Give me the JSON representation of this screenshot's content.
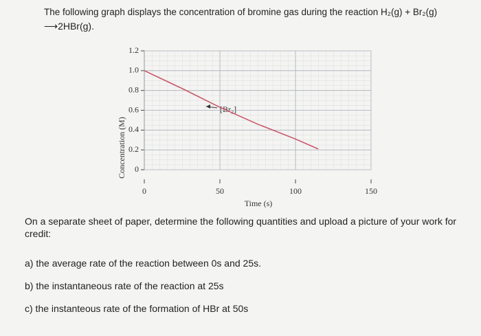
{
  "document": {
    "title_line1": "The following graph displays the concentration of bromine gas during the reaction H₂(g) + Br₂(g)",
    "title_line2": "⟶2HBr(g).",
    "instruction": "On a separate sheet of paper, determine the following quantities and upload a picture of your work for credit:",
    "questions": [
      "a) the average rate of the reaction between 0s and 25s.",
      "b) the instantaneous rate of the reaction at 25s",
      "c) the instanteous rate of the formation of HBr at 50s"
    ]
  },
  "chart_data": {
    "type": "line",
    "x_label": "Time (s)",
    "y_label": "Concentration (M)",
    "x": [
      0,
      25,
      50,
      75,
      100,
      115
    ],
    "series": [
      {
        "name": "[Br₂]",
        "color": "#c9556a",
        "values": [
          1.0,
          0.82,
          0.63,
          0.46,
          0.31,
          0.21
        ]
      }
    ],
    "xlim": [
      0,
      150
    ],
    "xticks": [
      0,
      50,
      100,
      150
    ],
    "ylim": [
      0,
      1.2
    ],
    "yticks": [
      0,
      {
        "value": 0.2,
        "label": "0.2"
      },
      {
        "value": 0.4,
        "label": "0.4"
      },
      {
        "value": 0.6,
        "label": "0.6"
      },
      {
        "value": 0.8,
        "label": "0.8"
      },
      {
        "value": 1,
        "label": "1.0"
      },
      {
        "value": 1.2,
        "label": "1.2"
      }
    ],
    "grid": true
  }
}
